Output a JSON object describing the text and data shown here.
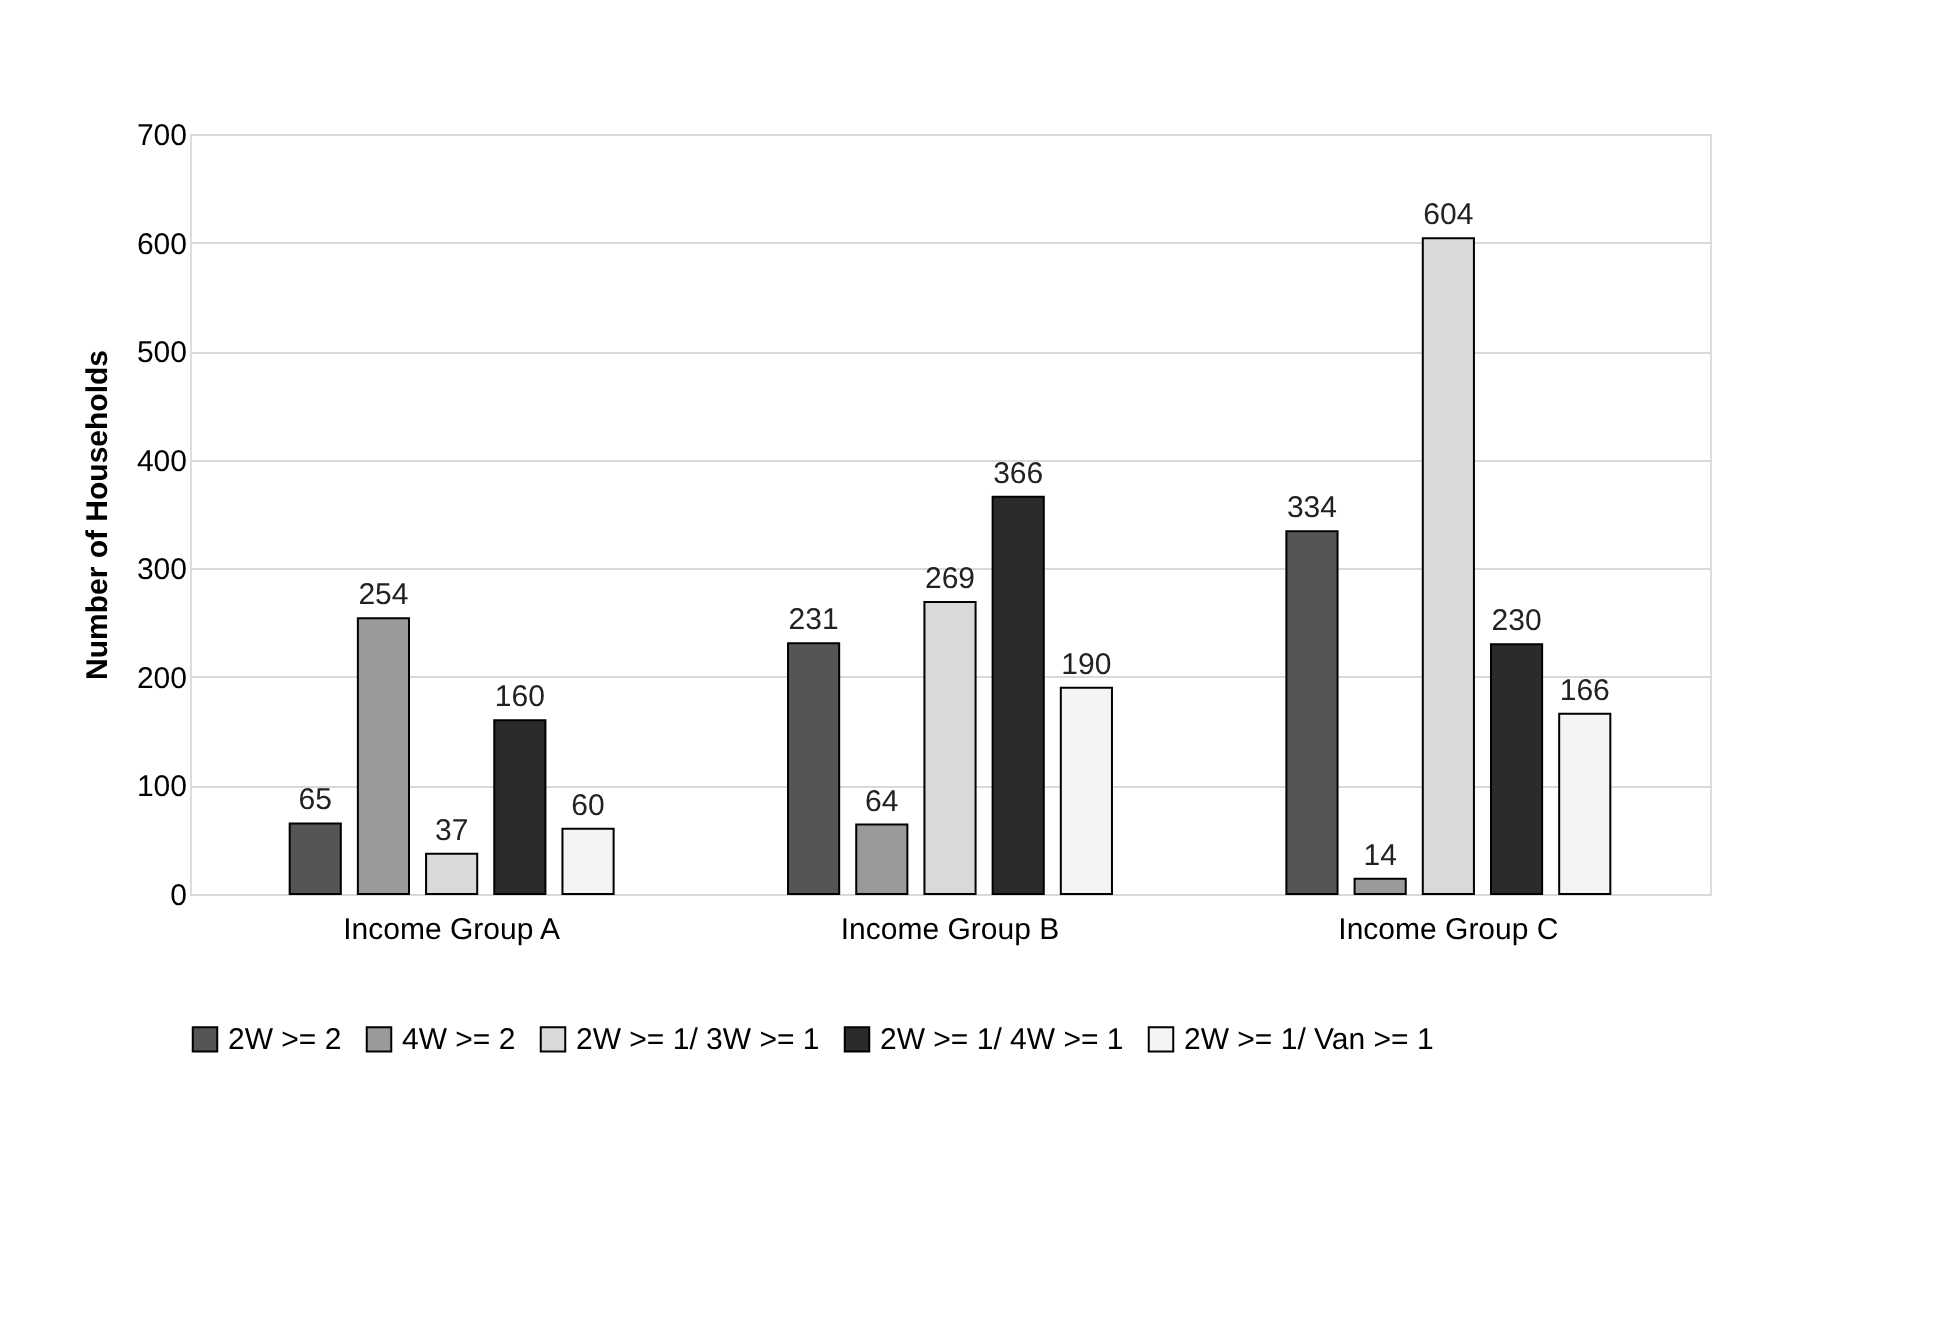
{
  "chart_data": {
    "type": "bar",
    "ylabel": "Number of Households",
    "categories": [
      "Income Group A",
      "Income Group B",
      "Income Group C"
    ],
    "series": [
      {
        "name": "2W >= 2",
        "color": "#555555",
        "values": [
          65,
          231,
          334
        ]
      },
      {
        "name": "4W >= 2",
        "color": "#9a9a9a",
        "values": [
          254,
          64,
          14
        ]
      },
      {
        "name": "2W >= 1/ 3W >= 1",
        "color": "#d9d9d9",
        "values": [
          37,
          269,
          604
        ]
      },
      {
        "name": "2W >= 1/ 4W >= 1",
        "color": "#2b2b2b",
        "values": [
          160,
          366,
          230
        ]
      },
      {
        "name": "2W >= 1/ Van >= 1",
        "color": "#f4f4f4",
        "values": [
          60,
          190,
          166
        ]
      }
    ],
    "ylim": [
      0,
      700
    ],
    "yticks": [
      0,
      100,
      200,
      300,
      400,
      500,
      600,
      700
    ],
    "grid": "y",
    "legend": "bottom",
    "data_labels": true
  }
}
